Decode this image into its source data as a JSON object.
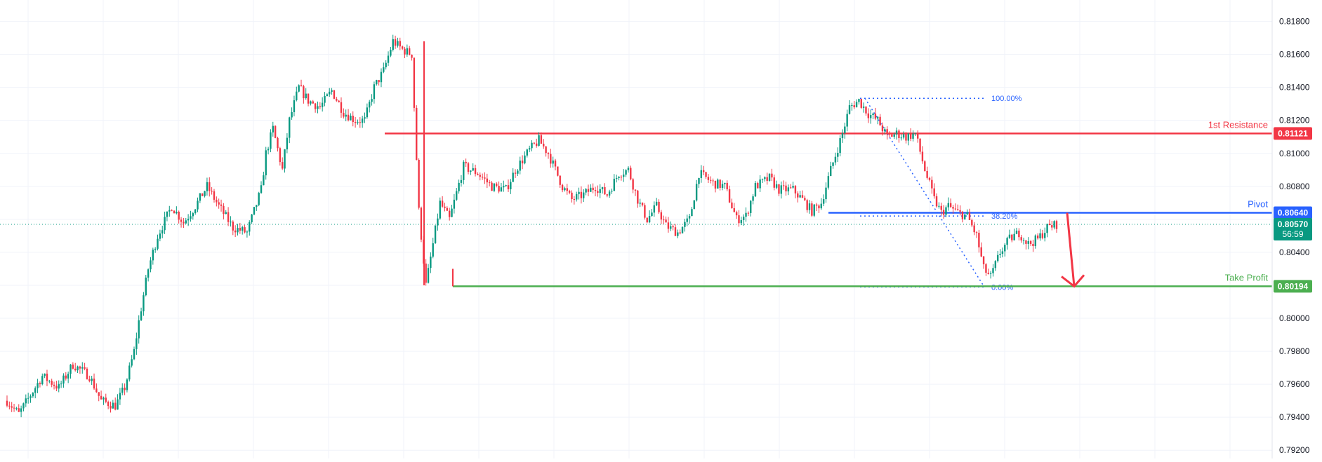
{
  "chart_data": {
    "type": "candlestick",
    "price_axis": {
      "range": [
        0.7915,
        0.8193
      ],
      "ticks": [
        "0.81800",
        "0.81600",
        "0.81400",
        "0.81200",
        "0.81000",
        "0.80800",
        "0.80600",
        "0.80400",
        "0.80200",
        "0.80000",
        "0.79800",
        "0.79600",
        "0.79400",
        "0.79200"
      ]
    },
    "grid": true,
    "current_price": {
      "value": "0.80570",
      "countdown": "56:59",
      "color": "#089981"
    },
    "levels": [
      {
        "name": "1st Resistance",
        "value": "0.81121",
        "color": "#f23645"
      },
      {
        "name": "Pivot",
        "value": "0.80640",
        "color": "#2962ff"
      },
      {
        "name": "Take Profit",
        "value": "0.80194",
        "color": "#4caf50"
      }
    ],
    "fibonacci": [
      {
        "label": "100.00%",
        "price": 0.81334
      },
      {
        "label": "38.20%",
        "price": 0.8062
      },
      {
        "label": "0.00%",
        "price": 0.8019
      }
    ],
    "colors": {
      "up": "#089981",
      "down": "#f23645",
      "grid": "#f0f3fa"
    },
    "path": [
      [
        0,
        0.795
      ],
      [
        5,
        0.7942
      ],
      [
        15,
        0.7965
      ],
      [
        22,
        0.7958
      ],
      [
        28,
        0.7972
      ],
      [
        35,
        0.7965
      ],
      [
        40,
        0.795
      ],
      [
        46,
        0.7947
      ],
      [
        50,
        0.7958
      ],
      [
        54,
        0.798
      ],
      [
        56,
        0.7998
      ],
      [
        60,
        0.803
      ],
      [
        64,
        0.805
      ],
      [
        70,
        0.8068
      ],
      [
        75,
        0.8058
      ],
      [
        80,
        0.8068
      ],
      [
        85,
        0.808
      ],
      [
        90,
        0.8068
      ],
      [
        96,
        0.8055
      ],
      [
        102,
        0.8052
      ],
      [
        108,
        0.8078
      ],
      [
        110,
        0.81
      ],
      [
        113,
        0.8115
      ],
      [
        117,
        0.809
      ],
      [
        120,
        0.812
      ],
      [
        124,
        0.814
      ],
      [
        128,
        0.8132
      ],
      [
        133,
        0.8128
      ],
      [
        138,
        0.8138
      ],
      [
        143,
        0.8125
      ],
      [
        148,
        0.812
      ],
      [
        152,
        0.812
      ],
      [
        156,
        0.814
      ],
      [
        160,
        0.815
      ],
      [
        164,
        0.8168
      ],
      [
        168,
        0.8163
      ],
      [
        172,
        0.816
      ],
      [
        175,
        0.8065
      ],
      [
        178,
        0.802
      ],
      [
        181,
        0.8045
      ],
      [
        184,
        0.807
      ],
      [
        188,
        0.806
      ],
      [
        194,
        0.8092
      ],
      [
        200,
        0.8088
      ],
      [
        206,
        0.808
      ],
      [
        212,
        0.8078
      ],
      [
        216,
        0.809
      ],
      [
        222,
        0.8102
      ],
      [
        226,
        0.8108
      ],
      [
        230,
        0.81
      ],
      [
        236,
        0.808
      ],
      [
        240,
        0.8072
      ],
      [
        245,
        0.8075
      ],
      [
        250,
        0.808
      ],
      [
        255,
        0.8075
      ],
      [
        260,
        0.8088
      ],
      [
        264,
        0.809
      ],
      [
        268,
        0.8072
      ],
      [
        272,
        0.806
      ],
      [
        276,
        0.8068
      ],
      [
        280,
        0.8056
      ],
      [
        285,
        0.8052
      ],
      [
        290,
        0.806
      ],
      [
        294,
        0.8088
      ],
      [
        300,
        0.8082
      ],
      [
        305,
        0.808
      ],
      [
        310,
        0.806
      ],
      [
        314,
        0.8062
      ],
      [
        318,
        0.808
      ],
      [
        324,
        0.8085
      ],
      [
        328,
        0.8078
      ],
      [
        334,
        0.8078
      ],
      [
        338,
        0.8072
      ],
      [
        342,
        0.8065
      ],
      [
        346,
        0.807
      ],
      [
        350,
        0.809
      ],
      [
        355,
        0.8112
      ],
      [
        358,
        0.8128
      ],
      [
        362,
        0.8132
      ],
      [
        366,
        0.8124
      ],
      [
        370,
        0.812
      ],
      [
        374,
        0.811
      ],
      [
        378,
        0.8112
      ],
      [
        382,
        0.811
      ],
      [
        386,
        0.8112
      ],
      [
        390,
        0.809
      ],
      [
        394,
        0.8072
      ],
      [
        397,
        0.8064
      ],
      [
        400,
        0.8068
      ],
      [
        404,
        0.8064
      ],
      [
        408,
        0.8062
      ],
      [
        412,
        0.805
      ],
      [
        415,
        0.803
      ],
      [
        418,
        0.8025
      ],
      [
        422,
        0.804
      ],
      [
        426,
        0.8048
      ],
      [
        430,
        0.8052
      ],
      [
        434,
        0.8045
      ],
      [
        438,
        0.8048
      ],
      [
        442,
        0.8055
      ],
      [
        446,
        0.8057
      ]
    ]
  },
  "legend": {}
}
